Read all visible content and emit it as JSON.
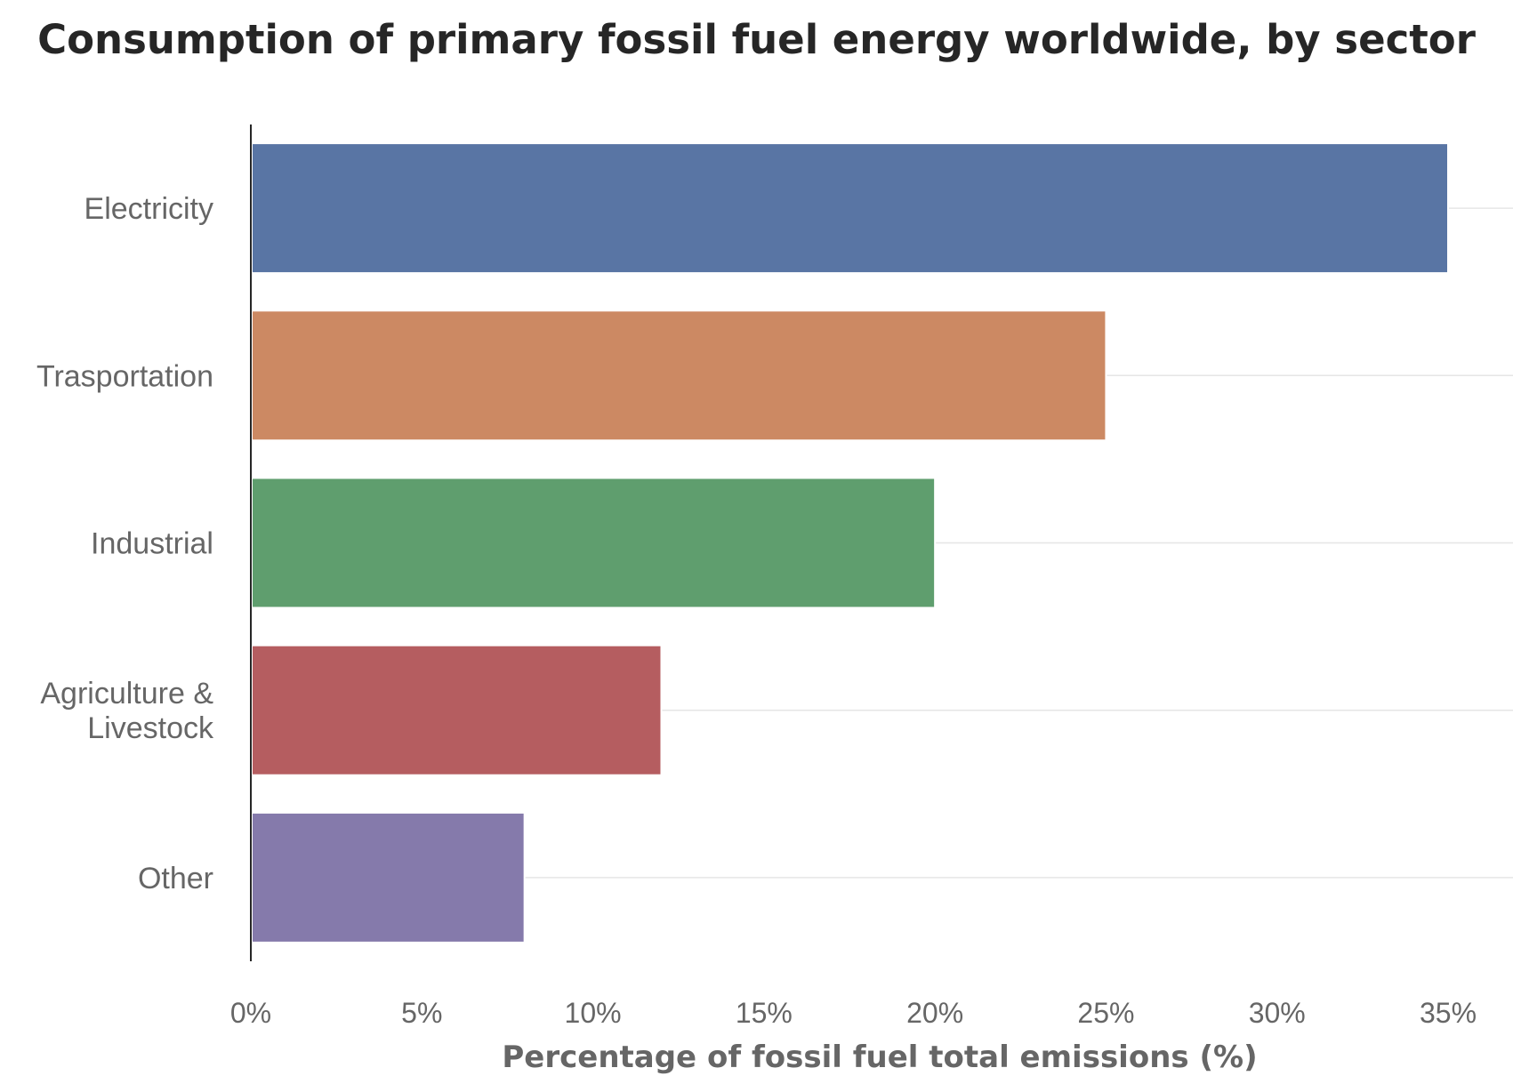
{
  "chart_data": {
    "type": "bar",
    "orientation": "horizontal",
    "title": "Consumption of primary fossil fuel energy worldwide, by sector",
    "xlabel": "Percentage of fossil fuel total emissions (%)",
    "ylabel": "",
    "categories": [
      [
        "Electricity"
      ],
      [
        "Trasportation"
      ],
      [
        "Industrial"
      ],
      [
        "Agriculture &",
        "Livestock"
      ],
      [
        "Other"
      ]
    ],
    "values": [
      35,
      25,
      20,
      12,
      8
    ],
    "colors": [
      "#5975a4",
      "#cc8963",
      "#5f9e6e",
      "#b55d60",
      "#857aab"
    ],
    "xlim": [
      0,
      35
    ],
    "xticks": [
      0,
      5,
      10,
      15,
      20,
      25,
      30,
      35
    ],
    "xtick_labels": [
      "0%",
      "5%",
      "10%",
      "15%",
      "20%",
      "25%",
      "30%",
      "35%"
    ],
    "grid": "horizontal",
    "legend": "none"
  }
}
